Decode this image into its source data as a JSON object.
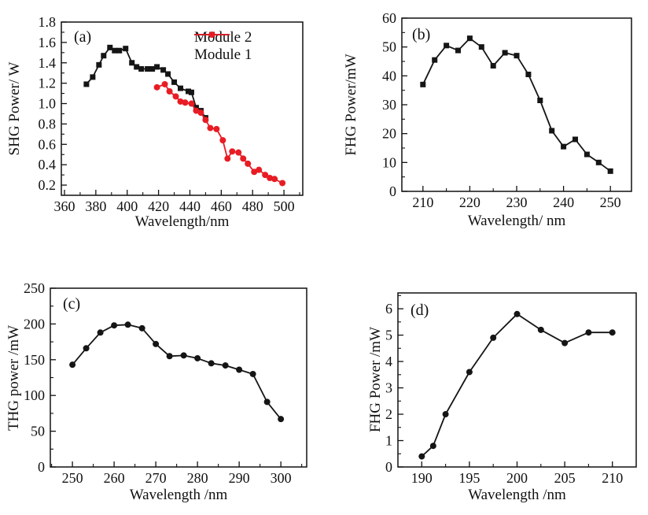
{
  "page": {
    "background": "#ffffff"
  },
  "colors": {
    "axis": "#111111",
    "black_series": "#151515",
    "red_series": "#e81c24"
  },
  "chart_data": [
    {
      "id": "a",
      "type": "line",
      "panel_label": "(a)",
      "xlabel": "Wavelength/nm",
      "ylabel": "SHG Power/ W",
      "xlim": [
        358,
        512
      ],
      "ylim": [
        0.1,
        1.8
      ],
      "xticks": [
        360,
        380,
        400,
        420,
        440,
        460,
        480,
        500
      ],
      "yticks": [
        0.2,
        0.4,
        0.6,
        0.8,
        1.0,
        1.2,
        1.4,
        1.6,
        1.8
      ],
      "xtick_decimals": 0,
      "ytick_decimals": 1,
      "minor_x_step": 10,
      "minor_y_step": 0.1,
      "grid": false,
      "legend_position": "top-right",
      "series": [
        {
          "name": "Module 2",
          "color": "#151515",
          "marker": "square",
          "x": [
            374,
            378,
            382,
            385,
            389,
            392,
            395,
            399,
            403,
            406,
            409,
            413,
            416,
            419,
            423,
            426,
            430,
            434,
            439,
            441,
            444,
            447,
            450
          ],
          "y": [
            1.19,
            1.26,
            1.38,
            1.47,
            1.55,
            1.52,
            1.52,
            1.54,
            1.4,
            1.36,
            1.34,
            1.34,
            1.34,
            1.36,
            1.33,
            1.29,
            1.21,
            1.15,
            1.12,
            1.11,
            0.96,
            0.93,
            0.86
          ]
        },
        {
          "name": "Module 1",
          "color": "#e81c24",
          "marker": "circle",
          "x": [
            419,
            424,
            427,
            431,
            434,
            437,
            441,
            444,
            447,
            450,
            453,
            457,
            461,
            464,
            467,
            471,
            474,
            477,
            481,
            484,
            488,
            491,
            494,
            499
          ],
          "y": [
            1.16,
            1.19,
            1.12,
            1.07,
            1.02,
            1.01,
            1.0,
            0.93,
            0.91,
            0.84,
            0.76,
            0.75,
            0.64,
            0.46,
            0.53,
            0.52,
            0.46,
            0.41,
            0.33,
            0.35,
            0.3,
            0.27,
            0.26,
            0.22
          ]
        }
      ]
    },
    {
      "id": "b",
      "type": "line",
      "panel_label": "(b)",
      "xlabel": "Wavelength/ nm",
      "ylabel": "FHG Power/mW",
      "xlim": [
        205.5,
        254.5
      ],
      "ylim": [
        0,
        60
      ],
      "xticks": [
        210,
        220,
        230,
        240,
        250
      ],
      "yticks": [
        0,
        10,
        20,
        30,
        40,
        50,
        60
      ],
      "xtick_decimals": 0,
      "ytick_decimals": 0,
      "minor_x_step": 5,
      "minor_y_step": 5,
      "grid": false,
      "series": [
        {
          "name": "FHG",
          "color": "#151515",
          "marker": "square",
          "x": [
            210,
            212.5,
            215,
            217.5,
            220,
            222.5,
            225,
            227.5,
            230,
            232.5,
            235,
            237.5,
            240,
            242.5,
            245,
            247.5,
            250
          ],
          "y": [
            37,
            45.5,
            50.5,
            48.8,
            53,
            50,
            43.5,
            48,
            47,
            40.5,
            31.5,
            21,
            15.5,
            18,
            12.8,
            10,
            7
          ]
        }
      ]
    },
    {
      "id": "c",
      "type": "line",
      "panel_label": "(c)",
      "xlabel": "Wavelength /nm",
      "ylabel": "THG power /mW",
      "xlim": [
        244.7,
        306.2
      ],
      "ylim": [
        0,
        250
      ],
      "xticks": [
        250,
        260,
        270,
        280,
        290,
        300
      ],
      "yticks": [
        0,
        50,
        100,
        150,
        200,
        250
      ],
      "xtick_decimals": 0,
      "ytick_decimals": 0,
      "minor_x_step": 5,
      "minor_y_step": 25,
      "grid": false,
      "series": [
        {
          "name": "THG",
          "color": "#151515",
          "marker": "circle",
          "x": [
            250,
            253.3,
            256.7,
            260,
            263.3,
            266.7,
            270,
            273.3,
            276.7,
            280,
            283.3,
            286.7,
            290,
            293.3,
            296.7,
            300
          ],
          "y": [
            143,
            166,
            188,
            198,
            199,
            194,
            172,
            155,
            156,
            152,
            145,
            142,
            136,
            130,
            91,
            67
          ]
        }
      ]
    },
    {
      "id": "d",
      "type": "line",
      "panel_label": "(d)",
      "xlabel": "Wavelength /nm",
      "ylabel": "FHG Power /mW",
      "xlim": [
        187.5,
        212.5
      ],
      "ylim": [
        0,
        6.6
      ],
      "xticks": [
        190,
        195,
        200,
        205,
        210
      ],
      "yticks": [
        0,
        1,
        2,
        3,
        4,
        5,
        6
      ],
      "xtick_decimals": 0,
      "ytick_decimals": 0,
      "minor_x_step": 2.5,
      "minor_y_step": 0.5,
      "grid": false,
      "series": [
        {
          "name": "FHG",
          "color": "#151515",
          "marker": "circle",
          "x": [
            190,
            191.2,
            192.5,
            195,
            197.5,
            200,
            202.5,
            205,
            207.5,
            210
          ],
          "y": [
            0.4,
            0.8,
            2.0,
            3.6,
            4.9,
            5.8,
            5.2,
            4.7,
            5.1,
            5.1
          ]
        }
      ]
    }
  ]
}
